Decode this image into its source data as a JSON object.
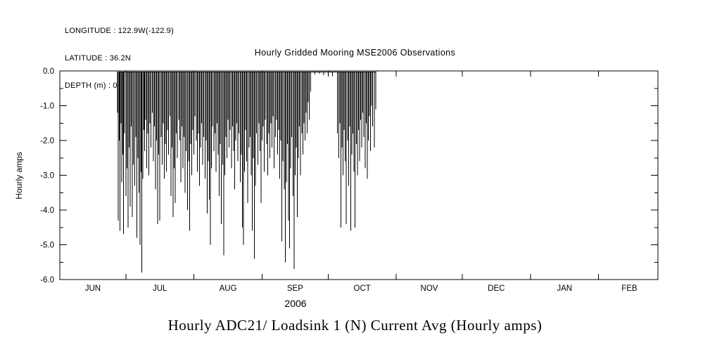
{
  "page": {
    "background": "#ffffff",
    "foreground": "#000000"
  },
  "header": {
    "longitude": "LONGITUDE : 122.9W(-122.9)",
    "latitude": "LATITUDE : 36.2N",
    "depth": "DEPTH (m) : 0"
  },
  "chart_data": {
    "type": "line",
    "title": "Hourly Gridded Mooring MSE2006 Observations",
    "bottom_title": "Hourly ADC21/ Loadsink 1 (N) Current Avg (Hourly amps)",
    "ylabel": "Hourly amps",
    "xlabel_year": "2006",
    "line_color": "#000000",
    "grid": false,
    "legend": "none",
    "ylim": [
      -6.0,
      0.0
    ],
    "y_ticks": [
      0.0,
      -1.0,
      -2.0,
      -3.0,
      -4.0,
      -5.0,
      -6.0
    ],
    "y_tick_labels": [
      "0.0",
      "-1.0",
      "-2.0",
      "-3.0",
      "-4.0",
      "-5.0",
      "-6.0"
    ],
    "y_minor_ticks": [
      -0.5,
      -1.5,
      -2.5,
      -3.5,
      -4.5,
      -5.5
    ],
    "x_tick_labels": [
      "JUN",
      "JUL",
      "AUG",
      "SEP",
      "OCT",
      "NOV",
      "DEC",
      "JAN",
      "FEB"
    ],
    "x_axis_days": 272,
    "month_start_days": [
      0,
      30,
      61,
      92,
      122,
      153,
      183,
      214,
      245
    ],
    "month_label_days": [
      15,
      45.5,
      76.5,
      107,
      137.5,
      168,
      198.5,
      229.5,
      259
    ],
    "series": [
      {
        "name": "Hourly ADC21/ Loadsink 1 (N) Current Avg",
        "units": "Hourly amps",
        "baseline": -0.03,
        "data_start_day": 26.0,
        "data_end_day": 144.0,
        "points": [
          [
            26.3,
            -1.2
          ],
          [
            26.6,
            -4.3
          ],
          [
            27.0,
            -2.0
          ],
          [
            27.4,
            -4.6
          ],
          [
            27.8,
            -1.5
          ],
          [
            28.2,
            -3.2
          ],
          [
            28.6,
            -2.4
          ],
          [
            29.0,
            -4.7
          ],
          [
            29.5,
            -1.8
          ],
          [
            30.0,
            -3.6
          ],
          [
            30.5,
            -2.8
          ],
          [
            31.0,
            -4.5
          ],
          [
            31.5,
            -2.2
          ],
          [
            32.0,
            -3.9
          ],
          [
            32.5,
            -1.6
          ],
          [
            33.0,
            -4.2
          ],
          [
            33.5,
            -2.7
          ],
          [
            34.0,
            -3.3
          ],
          [
            34.5,
            -1.9
          ],
          [
            35.0,
            -4.8
          ],
          [
            35.5,
            -2.5
          ],
          [
            36.0,
            -3.5
          ],
          [
            36.5,
            -5.0
          ],
          [
            37.0,
            -2.9
          ],
          [
            37.3,
            -5.8
          ],
          [
            37.8,
            -3.1
          ],
          [
            38.2,
            -1.7
          ],
          [
            38.6,
            -2.3
          ],
          [
            39.0,
            -1.4
          ],
          [
            39.5,
            -2.8
          ],
          [
            40.0,
            -1.8
          ],
          [
            40.5,
            -3.0
          ],
          [
            41.0,
            -1.5
          ],
          [
            41.5,
            -2.2
          ],
          [
            42.0,
            -1.2
          ],
          [
            42.5,
            -2.6
          ],
          [
            43.0,
            -1.6
          ],
          [
            43.5,
            -3.4
          ],
          [
            44.0,
            -2.0
          ],
          [
            44.5,
            -4.4
          ],
          [
            45.0,
            -2.4
          ],
          [
            45.5,
            -4.3
          ],
          [
            46.0,
            -1.9
          ],
          [
            46.5,
            -2.7
          ],
          [
            47.0,
            -1.5
          ],
          [
            47.5,
            -3.1
          ],
          [
            48.0,
            -2.1
          ],
          [
            48.5,
            -2.9
          ],
          [
            49.0,
            -1.7
          ],
          [
            49.5,
            -2.4
          ],
          [
            50.0,
            -1.3
          ],
          [
            50.5,
            -3.6
          ],
          [
            51.0,
            -2.2
          ],
          [
            51.5,
            -4.2
          ],
          [
            52.0,
            -2.8
          ],
          [
            52.5,
            -3.8
          ],
          [
            53.0,
            -1.8
          ],
          [
            53.5,
            -2.5
          ],
          [
            54.0,
            -1.4
          ],
          [
            54.5,
            -2.0
          ],
          [
            55.0,
            -3.2
          ],
          [
            55.5,
            -1.6
          ],
          [
            56.0,
            -2.8
          ],
          [
            56.5,
            -1.9
          ],
          [
            57.0,
            -3.5
          ],
          [
            57.5,
            -2.3
          ],
          [
            58.0,
            -4.0
          ],
          [
            58.5,
            -2.6
          ],
          [
            59.0,
            -4.6
          ],
          [
            59.5,
            -2.1
          ],
          [
            60.0,
            -3.0
          ],
          [
            60.5,
            -1.7
          ],
          [
            61.0,
            -2.4
          ],
          [
            61.5,
            -1.3
          ],
          [
            62.0,
            -2.0
          ],
          [
            62.5,
            -2.9
          ],
          [
            63.0,
            -1.8
          ],
          [
            63.5,
            -3.3
          ],
          [
            64.0,
            -2.2
          ],
          [
            64.5,
            -1.5
          ],
          [
            65.0,
            -2.7
          ],
          [
            65.5,
            -1.9
          ],
          [
            66.0,
            -3.1
          ],
          [
            66.5,
            -2.0
          ],
          [
            67.0,
            -4.1
          ],
          [
            67.5,
            -2.6
          ],
          [
            68.0,
            -3.7
          ],
          [
            68.5,
            -5.0
          ],
          [
            69.0,
            -2.8
          ],
          [
            69.5,
            -1.6
          ],
          [
            70.0,
            -2.3
          ],
          [
            70.5,
            -1.8
          ],
          [
            71.0,
            -2.9
          ],
          [
            71.5,
            -1.5
          ],
          [
            72.0,
            -2.4
          ],
          [
            72.5,
            -3.6
          ],
          [
            73.0,
            -2.1
          ],
          [
            73.5,
            -4.4
          ],
          [
            74.0,
            -2.7
          ],
          [
            74.5,
            -5.3
          ],
          [
            75.0,
            -3.0
          ],
          [
            75.5,
            -1.9
          ],
          [
            76.0,
            -2.5
          ],
          [
            76.5,
            -1.4
          ],
          [
            77.0,
            -2.2
          ],
          [
            77.5,
            -1.7
          ],
          [
            78.0,
            -2.8
          ],
          [
            78.5,
            -1.6
          ],
          [
            79.0,
            -2.3
          ],
          [
            79.5,
            -3.4
          ],
          [
            80.0,
            -2.0
          ],
          [
            80.5,
            -1.5
          ],
          [
            81.0,
            -2.6
          ],
          [
            81.5,
            -1.8
          ],
          [
            82.0,
            -3.2
          ],
          [
            82.5,
            -2.4
          ],
          [
            83.0,
            -4.5
          ],
          [
            83.5,
            -5.0
          ],
          [
            84.0,
            -2.9
          ],
          [
            84.5,
            -1.7
          ],
          [
            85.0,
            -2.6
          ],
          [
            85.5,
            -3.8
          ],
          [
            86.0,
            -2.2
          ],
          [
            86.5,
            -1.9
          ],
          [
            87.0,
            -3.0
          ],
          [
            87.5,
            -4.6
          ],
          [
            88.0,
            -2.5
          ],
          [
            88.5,
            -5.4
          ],
          [
            89.0,
            -3.3
          ],
          [
            89.5,
            -1.8
          ],
          [
            90.0,
            -2.7
          ],
          [
            90.5,
            -1.5
          ],
          [
            91.0,
            -2.3
          ],
          [
            91.5,
            -3.8
          ],
          [
            92.0,
            -2.0
          ],
          [
            92.5,
            -1.6
          ],
          [
            93.0,
            -2.9
          ],
          [
            93.5,
            -1.4
          ],
          [
            94.0,
            -2.1
          ],
          [
            94.5,
            -3.0
          ],
          [
            95.0,
            -1.8
          ],
          [
            95.5,
            -2.5
          ],
          [
            96.0,
            -1.5
          ],
          [
            96.5,
            -2.2
          ],
          [
            97.0,
            -1.3
          ],
          [
            97.5,
            -2.8
          ],
          [
            98.0,
            -1.9
          ],
          [
            98.5,
            -1.4
          ],
          [
            99.0,
            -2.4
          ],
          [
            99.5,
            -1.7
          ],
          [
            100.0,
            -3.1
          ],
          [
            100.5,
            -2.0
          ],
          [
            101.0,
            -4.9
          ],
          [
            101.5,
            -2.6
          ],
          [
            102.0,
            -3.4
          ],
          [
            102.5,
            -5.5
          ],
          [
            103.0,
            -3.2
          ],
          [
            103.5,
            -2.1
          ],
          [
            104.0,
            -4.3
          ],
          [
            104.5,
            -5.1
          ],
          [
            105.0,
            -2.8
          ],
          [
            105.5,
            -1.9
          ],
          [
            106.0,
            -3.6
          ],
          [
            106.5,
            -5.7
          ],
          [
            107.0,
            -3.0
          ],
          [
            107.5,
            -2.2
          ],
          [
            108.0,
            -4.2
          ],
          [
            108.5,
            -2.5
          ],
          [
            109.0,
            -1.6
          ],
          [
            109.5,
            -3.0
          ],
          [
            110.0,
            -1.8
          ],
          [
            110.5,
            -2.4
          ],
          [
            111.0,
            -1.5
          ],
          [
            111.5,
            -2.0
          ],
          [
            112.0,
            -1.2
          ],
          [
            112.5,
            -1.8
          ],
          [
            113.0,
            -0.9
          ],
          [
            113.5,
            -1.4
          ],
          [
            114.0,
            -0.6
          ],
          [
            116.0,
            -0.1
          ],
          [
            118.0,
            -0.08
          ],
          [
            120.0,
            -0.12
          ],
          [
            122.0,
            -0.1
          ],
          [
            124.0,
            -0.15
          ],
          [
            126.3,
            -1.8
          ],
          [
            126.8,
            -2.5
          ],
          [
            127.3,
            -1.5
          ],
          [
            127.8,
            -4.5
          ],
          [
            128.3,
            -2.2
          ],
          [
            128.8,
            -3.0
          ],
          [
            129.3,
            -1.7
          ],
          [
            129.8,
            -2.6
          ],
          [
            130.3,
            -4.4
          ],
          [
            130.8,
            -2.0
          ],
          [
            131.3,
            -3.3
          ],
          [
            131.8,
            -1.6
          ],
          [
            132.3,
            -4.6
          ],
          [
            132.8,
            -2.4
          ],
          [
            133.3,
            -1.8
          ],
          [
            133.8,
            -2.9
          ],
          [
            134.3,
            -4.5
          ],
          [
            134.8,
            -2.1
          ],
          [
            135.3,
            -3.0
          ],
          [
            135.8,
            -1.7
          ],
          [
            136.3,
            -2.6
          ],
          [
            136.8,
            -1.4
          ],
          [
            137.3,
            -2.2
          ],
          [
            137.8,
            -1.2
          ],
          [
            138.3,
            -1.9
          ],
          [
            138.8,
            -2.8
          ],
          [
            139.3,
            -1.5
          ],
          [
            139.8,
            -3.1
          ],
          [
            140.3,
            -2.0
          ],
          [
            140.8,
            -1.3
          ],
          [
            141.3,
            -2.3
          ],
          [
            141.8,
            -1.0
          ],
          [
            142.3,
            -1.6
          ],
          [
            143.0,
            -2.2
          ],
          [
            143.6,
            -1.1
          ]
        ]
      }
    ]
  }
}
